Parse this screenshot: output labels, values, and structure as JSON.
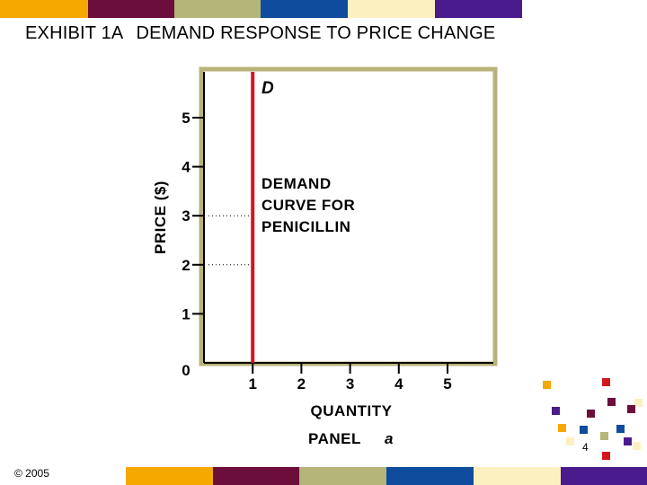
{
  "header": {
    "exhibit": "EXHIBIT 1A",
    "title": "DEMAND RESPONSE TO PRICE CHANGE"
  },
  "footer": {
    "copyright": "© 2005",
    "page_number": "4"
  },
  "colors": {
    "band": [
      "#F5A800",
      "#6B0E3B",
      "#B5B57A",
      "#0F4C9E",
      "#FDF0C0",
      "#4A1B8C"
    ],
    "frame": "#B8B37A",
    "curve": "#D4161F"
  },
  "chart_data": {
    "type": "line",
    "title": "",
    "xlabel": "QUANTITY",
    "ylabel": "PRICE ($)",
    "panel_label": "PANEL",
    "panel_letter": "a",
    "xlim": [
      0,
      5
    ],
    "ylim": [
      0,
      5
    ],
    "x_ticks": [
      1,
      2,
      3,
      4,
      5
    ],
    "y_ticks": [
      0,
      1,
      2,
      3,
      4,
      5
    ],
    "series": [
      {
        "name": "D",
        "x": [
          1,
          1
        ],
        "y": [
          0,
          6
        ]
      }
    ],
    "annotation": [
      "DEMAND",
      "CURVE FOR",
      "PENICILLIN"
    ],
    "reference_lines_y": [
      3,
      2
    ],
    "grid": false
  },
  "decor": {
    "squares": [
      {
        "color": "#F5A800"
      },
      {
        "color": "#D4161F"
      },
      {
        "color": "#4A1B8C"
      },
      {
        "color": "#6B0E3B"
      },
      {
        "color": "#FDF0C0"
      },
      {
        "color": "#6B0E3B"
      },
      {
        "color": "#6B0E3B"
      },
      {
        "color": "#F5A800"
      },
      {
        "color": "#0F4C9E"
      },
      {
        "color": "#0F4C9E"
      },
      {
        "color": "#FDF0C0"
      },
      {
        "color": "#B5B57A"
      },
      {
        "color": "#4A1B8C"
      },
      {
        "color": "#D4161F"
      },
      {
        "color": "#FDF0C0"
      }
    ]
  }
}
